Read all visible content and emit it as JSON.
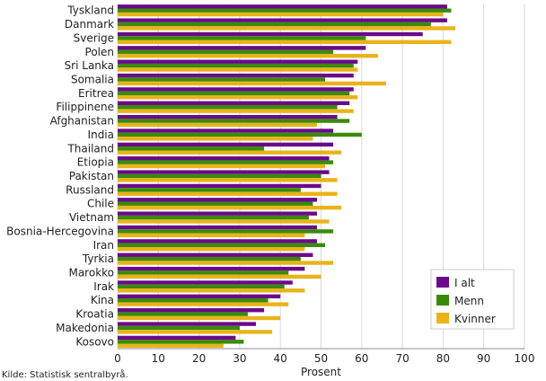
{
  "chart_data": {
    "type": "bar",
    "orientation": "horizontal",
    "categories": [
      "Tyskland",
      "Danmark",
      "Sverige",
      "Polen",
      "Sri Lanka",
      "Somalia",
      "Eritrea",
      "Filippinene",
      "Afghanistan",
      "India",
      "Thailand",
      "Etiopia",
      "Pakistan",
      "Russland",
      "Chile",
      "Vietnam",
      "Bosnia-Hercegovina",
      "Iran",
      "Tyrkia",
      "Marokko",
      "Irak",
      "Kina",
      "Kroatia",
      "Makedonia",
      "Kosovo"
    ],
    "series": [
      {
        "name": "I alt",
        "color": "#6a0a8a",
        "values": [
          81,
          81,
          75,
          61,
          59,
          58,
          58,
          57,
          54,
          53,
          53,
          52,
          52,
          50,
          49,
          49,
          49,
          49,
          48,
          46,
          43,
          40,
          36,
          34,
          29
        ]
      },
      {
        "name": "Menn",
        "color": "#3a8a0a",
        "values": [
          82,
          77,
          61,
          53,
          58,
          51,
          57,
          54,
          57,
          60,
          36,
          53,
          50,
          45,
          48,
          47,
          53,
          51,
          45,
          42,
          41,
          37,
          32,
          30,
          31
        ]
      },
      {
        "name": "Kvinner",
        "color": "#e8b41a",
        "values": [
          80,
          83,
          82,
          64,
          59,
          66,
          59,
          58,
          49,
          48,
          55,
          51,
          54,
          54,
          55,
          52,
          46,
          46,
          53,
          50,
          46,
          42,
          40,
          38,
          26
        ]
      }
    ],
    "xlabel": "Prosent",
    "xlim": [
      0,
      100
    ],
    "xticks": [
      0,
      10,
      20,
      30,
      40,
      50,
      60,
      70,
      80,
      90,
      100
    ],
    "grid": true,
    "legend_position": "bottom-right"
  },
  "source_note": "Kilde: Statistisk sentralbyrå."
}
